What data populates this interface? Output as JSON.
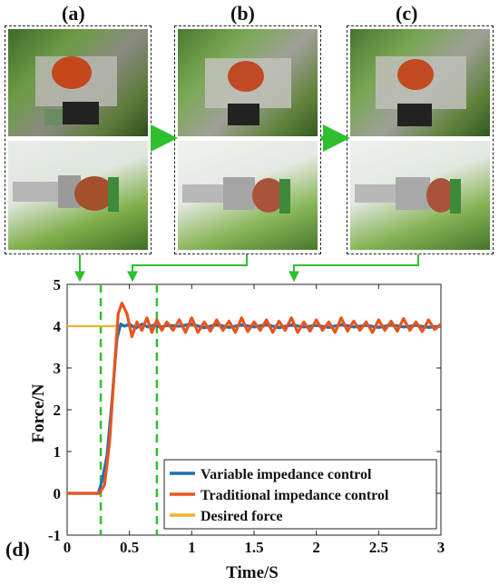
{
  "panels": {
    "a_label": "(a)",
    "b_label": "(b)",
    "c_label": "(c)",
    "d_label": "(d)"
  },
  "colors": {
    "variable": "#1f6fb5",
    "traditional": "#e8541e",
    "desired": "#f2b02c",
    "marker": "#2fc02f"
  },
  "chart_data": {
    "type": "line",
    "xlabel": "Time/S",
    "ylabel": "Force/N",
    "xlim": [
      0,
      3
    ],
    "ylim": [
      -1,
      5
    ],
    "xticks": [
      "0",
      "0.5",
      "1",
      "1.5",
      "2",
      "2.5",
      "3"
    ],
    "yticks": [
      "-1",
      "0",
      "1",
      "2",
      "3",
      "4",
      "5"
    ],
    "legend_position": "bottom-right",
    "markers_x": [
      0.27,
      0.72
    ],
    "series": [
      {
        "name": "Variable impedance control",
        "color_key": "variable",
        "x": [
          0,
          0.25,
          0.28,
          0.32,
          0.36,
          0.4,
          0.43,
          0.46,
          0.5,
          0.55,
          0.6,
          0.65,
          0.7,
          0.75,
          0.8,
          0.9,
          1.0,
          1.1,
          1.2,
          1.3,
          1.4,
          1.5,
          1.6,
          1.7,
          1.8,
          1.9,
          2.0,
          2.1,
          2.2,
          2.3,
          2.4,
          2.5,
          2.6,
          2.7,
          2.8,
          2.9,
          3.0
        ],
        "y": [
          0,
          0,
          0.3,
          0.9,
          2.2,
          3.7,
          4.05,
          4.0,
          4.05,
          3.95,
          4.05,
          3.98,
          4.03,
          3.97,
          4.02,
          4.0,
          4.05,
          3.96,
          4.04,
          3.97,
          4.03,
          3.98,
          4.04,
          3.96,
          4.03,
          3.98,
          4.02,
          3.97,
          4.04,
          3.98,
          4.02,
          3.97,
          4.03,
          3.98,
          4.02,
          3.97,
          4.0
        ]
      },
      {
        "name": "Traditional impedance control",
        "color_key": "traditional",
        "x": [
          0,
          0.26,
          0.3,
          0.34,
          0.38,
          0.41,
          0.44,
          0.48,
          0.52,
          0.56,
          0.6,
          0.64,
          0.68,
          0.72,
          0.76,
          0.8,
          0.85,
          0.9,
          0.95,
          1.0,
          1.05,
          1.1,
          1.15,
          1.2,
          1.25,
          1.3,
          1.35,
          1.4,
          1.45,
          1.5,
          1.55,
          1.6,
          1.65,
          1.7,
          1.75,
          1.8,
          1.85,
          1.9,
          1.95,
          2.0,
          2.05,
          2.1,
          2.15,
          2.2,
          2.25,
          2.3,
          2.35,
          2.4,
          2.45,
          2.5,
          2.55,
          2.6,
          2.65,
          2.7,
          2.75,
          2.8,
          2.85,
          2.9,
          2.95,
          3.0
        ],
        "y": [
          0,
          0,
          0.2,
          1.2,
          3.0,
          4.3,
          4.55,
          4.3,
          3.75,
          4.1,
          3.9,
          4.2,
          3.85,
          4.15,
          3.9,
          4.1,
          3.9,
          4.15,
          3.85,
          4.2,
          3.85,
          4.1,
          3.88,
          4.15,
          3.9,
          4.12,
          3.85,
          4.2,
          3.87,
          4.1,
          3.9,
          4.15,
          3.85,
          4.12,
          3.9,
          4.2,
          3.85,
          4.1,
          3.88,
          4.15,
          3.9,
          4.1,
          3.85,
          4.2,
          3.88,
          4.12,
          3.9,
          4.1,
          3.85,
          4.15,
          3.9,
          4.12,
          3.88,
          4.18,
          3.9,
          4.1,
          3.87,
          4.15,
          3.92,
          4.05
        ]
      },
      {
        "name": "Desired force",
        "color_key": "desired",
        "x": [
          0,
          3
        ],
        "y": [
          4,
          4
        ]
      }
    ]
  }
}
